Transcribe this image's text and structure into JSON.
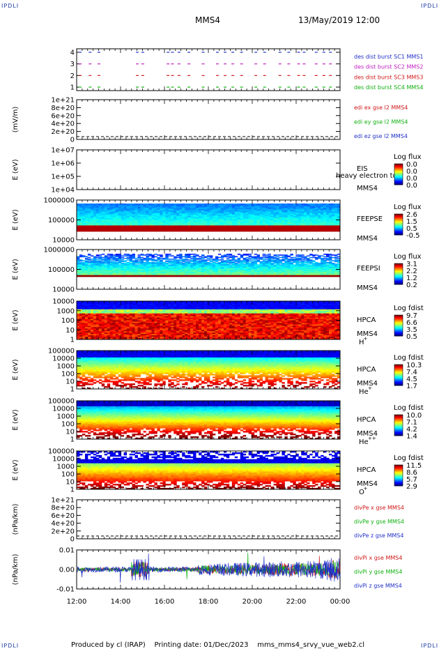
{
  "header": {
    "corner_label": "IPDLI",
    "spacecraft": "MMS4",
    "datetime": "13/May/2019 12:00"
  },
  "footer": {
    "produced_by": "Produced by cl (IRAP)",
    "printing_date": "Printing date: 01/Dec/2023",
    "script_name": "mms_mms4_srvy_vue_web2.cl"
  },
  "chart_data": {
    "type": "stacked-timeseries",
    "x": {
      "ticks": [
        "12:00",
        "14:00",
        "16:00",
        "18:00",
        "20:00",
        "22:00",
        "00:00"
      ],
      "range": [
        "12:00",
        "00:00"
      ]
    },
    "panels": [
      {
        "id": "burst",
        "type": "scatter",
        "ylabel": "",
        "ylim": [
          0.5,
          4.5
        ],
        "yticks": [
          "4",
          "3",
          "2",
          "1"
        ],
        "series": [
          {
            "name": "des dist burst SC1 MMS1",
            "color": "#2030c8",
            "level": 4
          },
          {
            "name": "des dist burst SC2 MMS2",
            "color": "#c020c0",
            "level": 3
          },
          {
            "name": "des dist burst SC3 MMS3",
            "color": "#d01818",
            "level": 2
          },
          {
            "name": "des dist burst SC4 MMS4",
            "color": "#10b010",
            "level": 1
          }
        ],
        "burst_times_hours": [
          12.1,
          12.55,
          12.95,
          14.7,
          14.95,
          16.1,
          16.3,
          16.6,
          17.05,
          17.7,
          18.35,
          18.7,
          19.05,
          19.45,
          20.1,
          20.5,
          21.2,
          21.6,
          22.05,
          22.3,
          22.85,
          23.2,
          23.5
        ]
      },
      {
        "id": "edi",
        "type": "line",
        "ylabel": "(mV/m)",
        "ylim": [
          0,
          1e+21
        ],
        "yticks": [
          "1e+21",
          "8e+20",
          "6e+20",
          "4e+20",
          "2e+20",
          "0"
        ],
        "series": [
          {
            "name": "edi ex gse l2 MMS4",
            "color": "#d01818",
            "values": []
          },
          {
            "name": "edi ey gse l2 MMS4",
            "color": "#10b010",
            "values": []
          },
          {
            "name": "edi ez gse l2 MMS4",
            "color": "#2030c8",
            "values": []
          }
        ]
      },
      {
        "id": "eis",
        "type": "heatmap",
        "ylabel": "E (eV)",
        "yticks": [
          "1e+07",
          "1e+06",
          "1e+05",
          "1e+04"
        ],
        "ylim": [
          10000,
          10000000
        ],
        "log": true,
        "right_labels": [
          "EIS",
          "MMS4"
        ],
        "overlay_text": "heavy electron to",
        "colorbar": {
          "title": "Log flux",
          "ticks": [
            "0.0",
            "0.0",
            "0.0",
            "0.0"
          ]
        },
        "empty": true
      },
      {
        "id": "feepse",
        "type": "heatmap",
        "ylabel": "E (eV)",
        "yticks": [
          "1000000",
          "100000",
          "10000"
        ],
        "ylim": [
          10000,
          1000000
        ],
        "log": true,
        "right_labels": [
          "FEEPSE",
          "MMS4"
        ],
        "colorbar": {
          "title": "Log flux",
          "ticks": [
            "2.6",
            "1.5",
            "0.5",
            "-0.5"
          ]
        }
      },
      {
        "id": "feepsi",
        "type": "heatmap",
        "ylabel": "E (eV)",
        "yticks": [
          "1000000",
          "100000",
          "10000"
        ],
        "ylim": [
          10000,
          1000000
        ],
        "log": true,
        "right_labels": [
          "FEEPSI",
          "MMS4"
        ],
        "colorbar": {
          "title": "Log flux",
          "ticks": [
            "3.1",
            "2.2",
            "1.2",
            "0.2"
          ]
        }
      },
      {
        "id": "hpca_h",
        "type": "heatmap",
        "ylabel": "E (eV)",
        "yticks": [
          "10000",
          "1000",
          "100",
          "10",
          "1"
        ],
        "ylim": [
          1,
          40000
        ],
        "log": true,
        "right_labels": [
          "HPCA",
          "MMS4",
          "H",
          "+"
        ],
        "colorbar": {
          "title": "Log fdist",
          "ticks": [
            "9.7",
            "6.6",
            "3.5",
            "0.5"
          ]
        }
      },
      {
        "id": "hpca_he",
        "type": "heatmap",
        "ylabel": "E (eV)",
        "yticks": [
          "100000",
          "10000",
          "1000",
          "100",
          "10",
          "1"
        ],
        "ylim": [
          1,
          100000
        ],
        "log": true,
        "right_labels": [
          "HPCA",
          "MMS4",
          "He",
          "+"
        ],
        "colorbar": {
          "title": "Log fdist",
          "ticks": [
            "10.3",
            "7.4",
            "4.5",
            "1.7"
          ]
        }
      },
      {
        "id": "hpca_hepp",
        "type": "heatmap",
        "ylabel": "E (eV)",
        "yticks": [
          "100000",
          "10000",
          "1000",
          "100",
          "10",
          "1"
        ],
        "ylim": [
          1,
          100000
        ],
        "log": true,
        "right_labels": [
          "HPCA",
          "MMS4",
          "He",
          "++"
        ],
        "colorbar": {
          "title": "Log fdist",
          "ticks": [
            "10.0",
            "7.1",
            "4.2",
            "1.4"
          ]
        }
      },
      {
        "id": "hpca_o",
        "type": "heatmap",
        "ylabel": "E (eV)",
        "yticks": [
          "100000",
          "10000",
          "1000",
          "100",
          "10",
          "1"
        ],
        "ylim": [
          1,
          100000
        ],
        "log": true,
        "right_labels": [
          "HPCA",
          "MMS4",
          "O",
          "+"
        ],
        "colorbar": {
          "title": "Log fdist",
          "ticks": [
            "11.5",
            "8.6",
            "5.7",
            "2.9"
          ]
        }
      },
      {
        "id": "divpe",
        "type": "line",
        "ylabel": "(nPa/km)",
        "ylim": [
          0,
          1e+21
        ],
        "yticks": [
          "1e+21",
          "8e+20",
          "6e+20",
          "4e+20",
          "2e+20",
          "0"
        ],
        "series": [
          {
            "name": "divPe x gse MMS4",
            "color": "#d01818",
            "values": []
          },
          {
            "name": "divPe y gse MMS4",
            "color": "#10b010",
            "values": []
          },
          {
            "name": "divPe z gse MMS4",
            "color": "#2030c8",
            "values": []
          }
        ]
      },
      {
        "id": "divpi",
        "type": "line",
        "ylabel": "(nPa/km)",
        "ylim": [
          -0.015,
          0.015
        ],
        "yticks": [
          "0.01",
          "0.00",
          "-0.01"
        ],
        "series": [
          {
            "name": "divPi x gse MMS4",
            "color": "#d01818"
          },
          {
            "name": "divPi y gse MMS4",
            "color": "#10b010"
          },
          {
            "name": "divPi z gse MMS4",
            "color": "#2030c8"
          }
        ]
      }
    ]
  }
}
